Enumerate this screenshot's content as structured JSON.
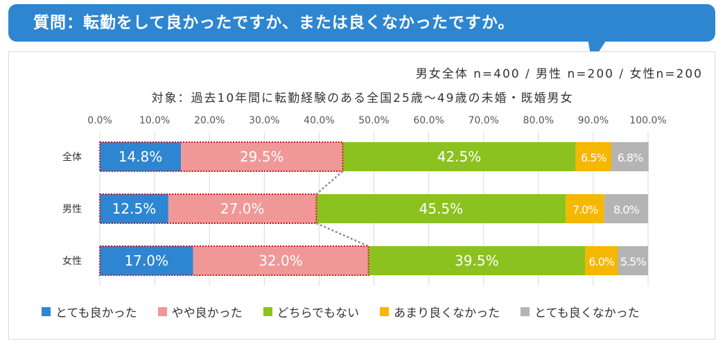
{
  "banner": {
    "text": "質問：転勤をして良かったですか、または良くなかったですか。"
  },
  "sample_note": "男女全体 n=400 / 男性 n=200 / 女性n=200",
  "subtitle": "対象：過去10年間に転勤経験のある全国25歳～49歳の未婚・既婚男女",
  "colors": {
    "banner": "#2f86d0",
    "highlight_border": "#d0101a",
    "connector": "#8c8c8c",
    "grid": "#d9d9d9"
  },
  "chart_data": {
    "type": "bar",
    "orientation": "horizontal",
    "stacked": true,
    "xlim": [
      0,
      100
    ],
    "ticks": [
      "0.0%",
      "10.0%",
      "20.0%",
      "30.0%",
      "40.0%",
      "50.0%",
      "60.0%",
      "70.0%",
      "80.0%",
      "90.0%",
      "100.0%"
    ],
    "categories": [
      "全体",
      "男性",
      "女性"
    ],
    "series": [
      {
        "name": "とても良かった",
        "color": "#2e86d2",
        "values": [
          14.8,
          12.5,
          17.0
        ],
        "labels": [
          "14.8%",
          "12.5%",
          "17.0%"
        ]
      },
      {
        "name": "やや良かった",
        "color": "#f09898",
        "values": [
          29.5,
          27.0,
          32.0
        ],
        "labels": [
          "29.5%",
          "27.0%",
          "32.0%"
        ]
      },
      {
        "name": "どちらでもない",
        "color": "#8cc220",
        "values": [
          42.5,
          45.5,
          39.5
        ],
        "labels": [
          "42.5%",
          "45.5%",
          "39.5%"
        ]
      },
      {
        "name": "あまり良くなかった",
        "color": "#f5b700",
        "values": [
          6.5,
          7.0,
          6.0
        ],
        "labels": [
          "6.5%",
          "7.0%",
          "6.0%"
        ]
      },
      {
        "name": "とても良くなかった",
        "color": "#b4b4b4",
        "values": [
          6.8,
          8.0,
          5.5
        ],
        "labels": [
          "6.8%",
          "8.0%",
          "5.5%"
        ]
      }
    ],
    "highlight_series": [
      0,
      1
    ],
    "legend_position": "bottom"
  }
}
